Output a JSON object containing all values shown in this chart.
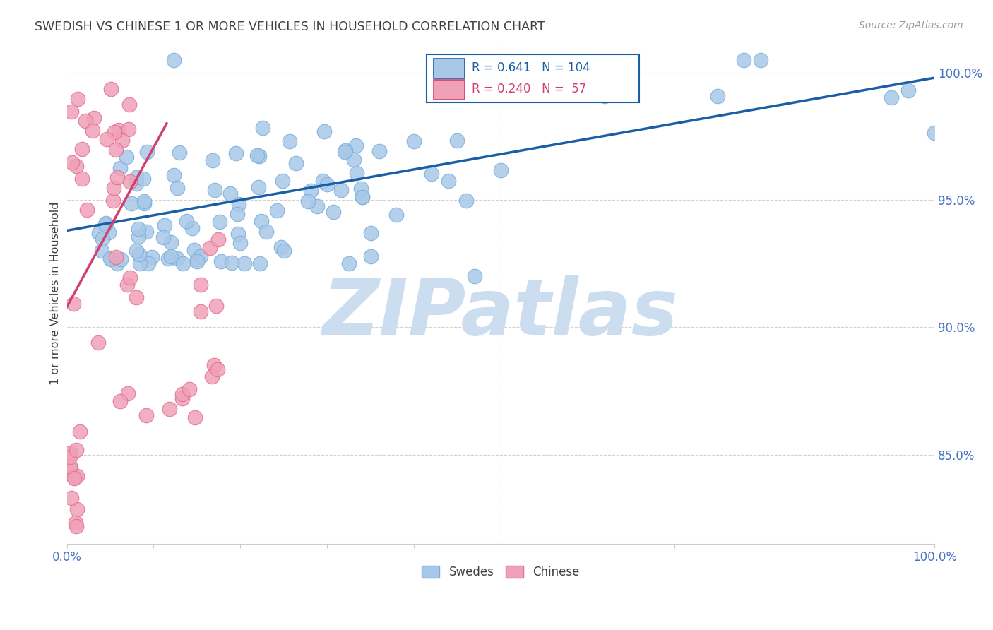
{
  "title": "SWEDISH VS CHINESE 1 OR MORE VEHICLES IN HOUSEHOLD CORRELATION CHART",
  "source": "Source: ZipAtlas.com",
  "ylabel": "1 or more Vehicles in Household",
  "yticks": [
    "85.0%",
    "90.0%",
    "95.0%",
    "100.0%"
  ],
  "ytick_vals": [
    0.85,
    0.9,
    0.95,
    1.0
  ],
  "xlim": [
    0.0,
    1.0
  ],
  "ylim": [
    0.815,
    1.012
  ],
  "legend_swedes": "Swedes",
  "legend_chinese": "Chinese",
  "r_swedes": 0.641,
  "n_swedes": 104,
  "r_chinese": 0.24,
  "n_chinese": 57,
  "blue_scatter_color": "#a8c8e8",
  "blue_edge_color": "#7aadda",
  "pink_scatter_color": "#f0a0b8",
  "pink_edge_color": "#e07090",
  "blue_line_color": "#1a5fa6",
  "pink_line_color": "#d04070",
  "title_color": "#404040",
  "source_color": "#999999",
  "axis_label_color": "#4472c4",
  "ytick_color": "#4472c4",
  "watermark_color": "#ccddf0",
  "grid_color": "#cccccc",
  "sw_line_x0": 0.0,
  "sw_line_x1": 1.0,
  "sw_line_y0": 0.938,
  "sw_line_y1": 0.998,
  "ch_line_x0": 0.0,
  "ch_line_x1": 0.115,
  "ch_line_y0": 0.908,
  "ch_line_y1": 0.98
}
